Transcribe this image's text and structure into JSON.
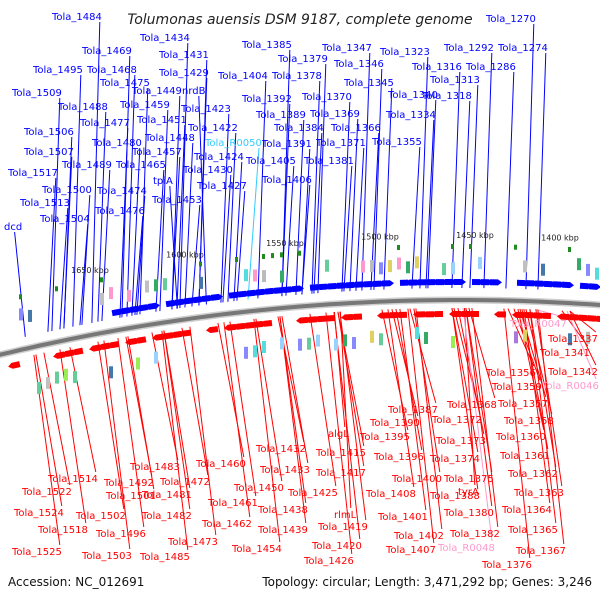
{
  "title": "Tolumonas auensis DSM 9187, complete genome",
  "footer": {
    "accession": "Accession: NC_012691",
    "summary": "Topology: circular; Length: 3,471,292 bp; Genes: 3,246"
  },
  "colors": {
    "forward": "#0000ff",
    "reverse": "#ff0000",
    "rna_forward": "#33ccff",
    "rna_reverse": "#ff99cc",
    "backbone": "#777777",
    "tick": "#1e8c1e"
  },
  "kbp_labels": [
    "1400 kbp",
    "1450 kbp",
    "1500 kbp",
    "1550 kbp",
    "1600 kbp",
    "1650 kbp"
  ],
  "top_labels": [
    "Tola_1484",
    "Tola_1434",
    "Tola_1469",
    "Tola_1431",
    "Tola_1495",
    "Tola_1468",
    "Tola_1429",
    "Tola_1475",
    "Tola_1509",
    "Tola_1449",
    "nrdB",
    "Tola_1488",
    "Tola_1459",
    "Tola_1423",
    "Tola_1477",
    "Tola_1451",
    "Tola_1422",
    "Tola_1506",
    "Tola_1480",
    "Tola_1448",
    "Tola_R0050",
    "Tola_1507",
    "Tola_1457",
    "Tola_1424",
    "Tola_1489",
    "Tola_1465",
    "Tola_1430",
    "Tola_1517",
    "tpiA",
    "Tola_1500",
    "Tola_1474",
    "Tola_1427",
    "Tola_1513",
    "Tola_1453",
    "Tola_1476",
    "Tola_1504",
    "dcd",
    "Tola_1385",
    "Tola_1347",
    "Tola_1323",
    "Tola_1292",
    "Tola_1274",
    "Tola_1270",
    "Tola_1379",
    "Tola_1346",
    "Tola_1316",
    "Tola_1286",
    "Tola_1404",
    "Tola_1378",
    "Tola_1345",
    "Tola_1313",
    "Tola_1392",
    "Tola_1370",
    "Tola_1340",
    "Tola_1318",
    "Tola_1389",
    "Tola_1369",
    "Tola_1334",
    "Tola_1384",
    "Tola_1366",
    "Tola_1391",
    "Tola_1371",
    "Tola_1355",
    "Tola_1405",
    "Tola_1381",
    "Tola_1406"
  ],
  "bottom_labels": [
    "Tola_R0047",
    "Tola_1337",
    "Tola_1341",
    "Tola_1356",
    "Tola_1342",
    "Tola_1359",
    "Tola_R0046",
    "Tola_1357",
    "Tola_1387",
    "Tola_1368",
    "Tola_1358",
    "Tola_1390",
    "Tola_1372",
    "Tola_1360",
    "Tola_1395",
    "Tola_1373",
    "algL",
    "Tola_1361",
    "Tola_1396",
    "Tola_1374",
    "Tola_1432",
    "Tola_1415",
    "Tola_1362",
    "Tola_1460",
    "Tola_1433",
    "Tola_1417",
    "Tola_1400",
    "Tola_1375",
    "Tola_1483",
    "Tola_1408",
    "Tola_1388",
    "tyrA",
    "Tola_1363",
    "Tola_1514",
    "Tola_1492",
    "Tola_1472",
    "Tola_1425",
    "Tola_1450",
    "Tola_1401",
    "Tola_1364",
    "Tola_1522",
    "Tola_1501",
    "Tola_1481",
    "Tola_1461",
    "rlmL",
    "Tola_1380",
    "Tola_1438",
    "Tola_1419",
    "Tola_1402",
    "Tola_1382",
    "Tola_1365",
    "Tola_1524",
    "Tola_1502",
    "Tola_1482",
    "Tola_1462",
    "Tola_1439",
    "Tola_1518",
    "Tola_1496",
    "Tola_1473",
    "Tola_1420",
    "Tola_1407",
    "Tola_R0048",
    "Tola_1367",
    "Tola_1454",
    "Tola_1525",
    "Tola_1503",
    "Tola_1485",
    "Tola_1426",
    "Tola_1376"
  ]
}
